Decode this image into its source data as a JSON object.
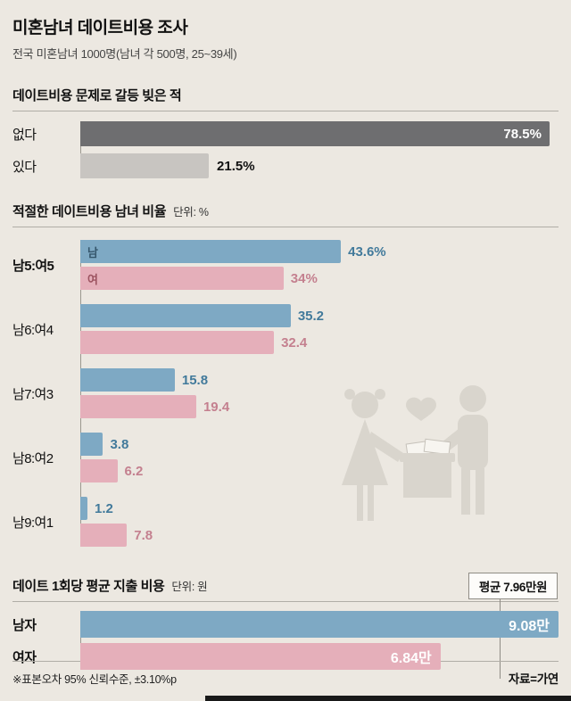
{
  "title": "미혼남녀 데이트비용 조사",
  "subtitle": "전국 미혼남녀 1000명(남녀 각 500명, 25~39세)",
  "footnote": "※표본오차 95% 신뢰수준, ±3.10%p",
  "source": "자료=가연",
  "colors": {
    "background": "#ece8e1",
    "male_bar": "#7ea9c4",
    "female_bar": "#e5afba",
    "dark_gray_bar": "#6e6e70",
    "light_gray_bar": "#c8c5c1"
  },
  "chart_data": [
    {
      "type": "bar",
      "title": "데이트비용 문제로 갈등 빚은 적",
      "unit": "%",
      "categories": [
        "없다",
        "있다"
      ],
      "values": [
        78.5,
        21.5
      ],
      "labels": [
        "78.5%",
        "21.5%"
      ],
      "xmax": 80,
      "orientation": "horizontal"
    },
    {
      "type": "bar",
      "title": "적절한 데이트비용 남녀 비율",
      "unit_label": "단위: %",
      "unit": "%",
      "categories": [
        "남5:여5",
        "남6:여4",
        "남7:여3",
        "남8:여2",
        "남9:여1"
      ],
      "xmax": 80,
      "orientation": "horizontal",
      "series": [
        {
          "name": "남",
          "values": [
            43.6,
            35.2,
            15.8,
            3.8,
            1.2
          ],
          "labels": [
            "43.6%",
            "35.2",
            "15.8",
            "3.8",
            "1.2"
          ]
        },
        {
          "name": "여",
          "values": [
            34,
            32.4,
            19.4,
            6.2,
            7.8
          ],
          "labels": [
            "34%",
            "32.4",
            "19.4",
            "6.2",
            "7.8"
          ]
        }
      ]
    },
    {
      "type": "bar",
      "title": "데이트 1회당 평균 지출 비용",
      "unit_label": "단위: 원",
      "unit": "만원",
      "categories": [
        "남자",
        "여자"
      ],
      "values": [
        9.08,
        6.84
      ],
      "labels": [
        "9.08만",
        "6.84만"
      ],
      "xmax": 9.08,
      "average": 7.96,
      "average_label": "평균 7.96만원",
      "orientation": "horizontal"
    }
  ]
}
